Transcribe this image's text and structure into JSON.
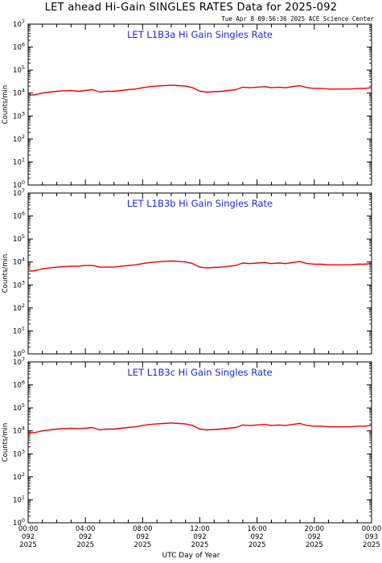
{
  "page": {
    "title": "LET ahead Hi-Gain SINGLES RATES Data for 2025-092",
    "timestamp": "Tue Apr  8 09:56:36 2025 ACE Science Center",
    "xlabel": "UTC Day of Year"
  },
  "colors": {
    "series": "#ee0000",
    "label": "#1a2bd6",
    "axis": "#000000"
  },
  "chart_data": [
    {
      "type": "line",
      "title": "LET L1B3a Hi Gain Singles Rate",
      "ylabel": "Counts/min",
      "yscale": "log",
      "ylim": [
        1,
        10000000
      ],
      "yticks": [
        1,
        10,
        100,
        1000,
        10000,
        100000,
        1000000,
        10000000
      ],
      "xlim": [
        0,
        24
      ],
      "x_unit": "hours UTC",
      "grid": false,
      "series": [
        {
          "x": [
            0,
            0.5,
            1,
            1.5,
            2,
            2.5,
            3,
            3.5,
            4,
            4.5,
            5,
            5.5,
            6,
            6.5,
            7,
            7.5,
            8,
            8.5,
            9,
            9.5,
            10,
            10.5,
            11,
            11.5,
            12,
            12.5,
            13,
            13.5,
            14,
            14.5,
            15,
            15.5,
            16,
            16.5,
            17,
            17.5,
            18,
            18.5,
            19,
            19.5,
            20,
            20.5,
            21,
            21.5,
            22,
            22.5,
            23,
            23.5,
            24
          ],
          "y": [
            8000,
            8500,
            10000,
            11000,
            12000,
            12500,
            13000,
            12000,
            13000,
            14000,
            11000,
            12000,
            12000,
            13000,
            14000,
            15000,
            17000,
            19000,
            20000,
            21000,
            22000,
            21000,
            20000,
            17000,
            12000,
            11000,
            11500,
            12000,
            13000,
            14000,
            18000,
            17000,
            18000,
            19000,
            17000,
            18000,
            17000,
            19000,
            21000,
            17000,
            16000,
            16000,
            15000,
            15000,
            15000,
            15000,
            16000,
            16000,
            17000
          ]
        }
      ]
    },
    {
      "type": "line",
      "title": "LET L1B3b Hi Gain Singles Rate",
      "ylabel": "Counts/min",
      "yscale": "log",
      "ylim": [
        1,
        10000000
      ],
      "yticks": [
        1,
        10,
        100,
        1000,
        10000,
        100000,
        1000000,
        10000000
      ],
      "xlim": [
        0,
        24
      ],
      "x_unit": "hours UTC",
      "grid": false,
      "series": [
        {
          "x": [
            0,
            0.5,
            1,
            1.5,
            2,
            2.5,
            3,
            3.5,
            4,
            4.5,
            5,
            5.5,
            6,
            6.5,
            7,
            7.5,
            8,
            8.5,
            9,
            9.5,
            10,
            10.5,
            11,
            11.5,
            12,
            12.5,
            13,
            13.5,
            14,
            14.5,
            15,
            15.5,
            16,
            16.5,
            17,
            17.5,
            18,
            18.5,
            19,
            19.5,
            20,
            20.5,
            21,
            21.5,
            22,
            22.5,
            23,
            23.5,
            24
          ],
          "y": [
            4000,
            4200,
            5000,
            5500,
            6000,
            6200,
            6500,
            6500,
            7000,
            7000,
            6000,
            6000,
            6000,
            6500,
            7000,
            7500,
            8500,
            9500,
            10000,
            10500,
            11000,
            10500,
            10000,
            8500,
            6000,
            5500,
            5800,
            6000,
            6500,
            7000,
            9000,
            8500,
            9000,
            9500,
            8500,
            9000,
            8500,
            9500,
            10500,
            8500,
            8000,
            8000,
            7500,
            7500,
            7500,
            7500,
            8000,
            8000,
            8500
          ]
        }
      ]
    },
    {
      "type": "line",
      "title": "LET L1B3c Hi Gain Singles Rate",
      "ylabel": "Counts/min",
      "yscale": "log",
      "ylim": [
        1,
        10000000
      ],
      "yticks": [
        1,
        10,
        100,
        1000,
        10000,
        100000,
        1000000,
        10000000
      ],
      "xlim": [
        0,
        24
      ],
      "x_unit": "hours UTC",
      "grid": false,
      "series": [
        {
          "x": [
            0,
            0.5,
            1,
            1.5,
            2,
            2.5,
            3,
            3.5,
            4,
            4.5,
            5,
            5.5,
            6,
            6.5,
            7,
            7.5,
            8,
            8.5,
            9,
            9.5,
            10,
            10.5,
            11,
            11.5,
            12,
            12.5,
            13,
            13.5,
            14,
            14.5,
            15,
            15.5,
            16,
            16.5,
            17,
            17.5,
            18,
            18.5,
            19,
            19.5,
            20,
            20.5,
            21,
            21.5,
            22,
            22.5,
            23,
            23.5,
            24
          ],
          "y": [
            8000,
            8500,
            10000,
            11000,
            12000,
            12500,
            13000,
            12500,
            13000,
            14000,
            11000,
            12000,
            12000,
            13000,
            14000,
            15000,
            17000,
            19000,
            20000,
            21000,
            22000,
            21000,
            20000,
            17000,
            12000,
            11000,
            11500,
            12000,
            13000,
            14000,
            18000,
            17000,
            18000,
            19000,
            17000,
            18000,
            17000,
            19000,
            21000,
            17000,
            16000,
            16000,
            15000,
            15000,
            15000,
            15000,
            16000,
            16000,
            17000
          ]
        }
      ]
    }
  ],
  "xticks": [
    {
      "x": 0,
      "time": "00:00",
      "doy": "092",
      "year": "2025"
    },
    {
      "x": 4,
      "time": "04:00",
      "doy": "092",
      "year": "2025"
    },
    {
      "x": 8,
      "time": "08:00",
      "doy": "092",
      "year": "2025"
    },
    {
      "x": 12,
      "time": "12:00",
      "doy": "092",
      "year": "2025"
    },
    {
      "x": 16,
      "time": "16:00",
      "doy": "092",
      "year": "2025"
    },
    {
      "x": 20,
      "time": "20:00",
      "doy": "092",
      "year": "2025"
    },
    {
      "x": 24,
      "time": "00:00",
      "doy": "093",
      "year": "2025"
    }
  ]
}
